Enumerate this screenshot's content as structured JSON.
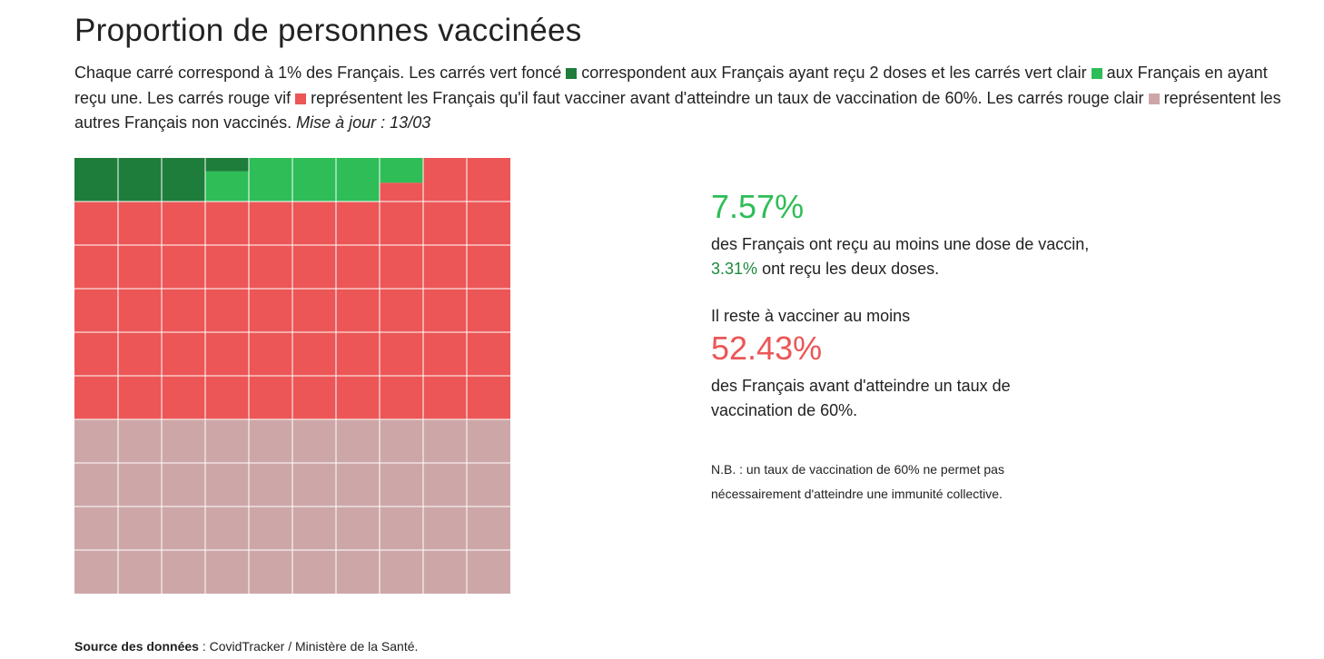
{
  "title": "Proportion de personnes vaccinées",
  "description": {
    "part1": "Chaque carré correspond à 1% des Français. Les carrés vert foncé",
    "part2": "correspondent aux Français ayant reçu 2 doses et les carrés vert clair",
    "part3": "aux Français en ayant reçu une. Les carrés rouge vif",
    "part4": "représentent les Français qu'il faut vacciner avant d'atteindre un taux de vaccination de 60%. Les carrés rouge clair",
    "part5": "représentent les autres Français non vaccinés.",
    "update": "Mise à jour : 13/03"
  },
  "colors": {
    "dark_green": "#1e7d3a",
    "light_green": "#2ebd57",
    "bright_red": "#ec5656",
    "light_red": "#cda7a8",
    "text": "#222222"
  },
  "stats": {
    "one_dose_pct": "7.57%",
    "one_dose_text_a": "des Français ont reçu au moins une dose de vaccin,",
    "two_doses_pct": "3.31%",
    "one_dose_text_b": "ont reçu les deux doses.",
    "remaining_intro": "Il reste à vacciner au moins",
    "remaining_pct": "52.43%",
    "remaining_text": "des Français avant d'atteindre un taux de vaccination de 60%.",
    "note": "N.B. : un taux de vaccination de 60% ne permet pas nécessairement d'atteindre une immunité collective."
  },
  "footer": {
    "source_label": "Source des données",
    "source_text": " : CovidTracker / Ministère de la Santé."
  },
  "chart_data": {
    "type": "waffle",
    "grid": {
      "rows": 10,
      "cols": 10,
      "unit_pct": 1
    },
    "series": [
      {
        "name": "2 doses",
        "value": 3.31,
        "color": "#1e7d3a"
      },
      {
        "name": "1 dose",
        "value": 4.26,
        "color": "#2ebd57"
      },
      {
        "name": "À vacciner avant 60%",
        "value": 52.43,
        "color": "#ec5656"
      },
      {
        "name": "Autres non vaccinés",
        "value": 40.0,
        "color": "#cda7a8"
      }
    ]
  }
}
